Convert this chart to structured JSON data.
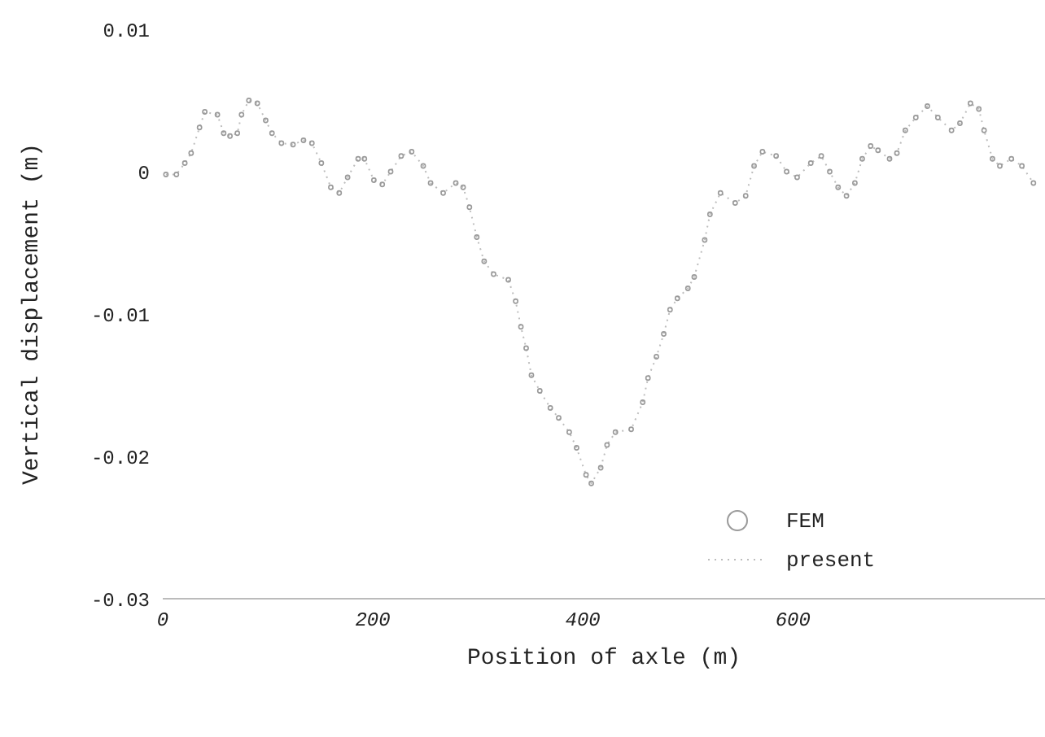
{
  "chart_data": {
    "type": "scatter",
    "xlabel": "Position of axle (m)",
    "ylabel": "Vertical displacement (m)",
    "x": [
      3,
      13,
      21,
      27,
      35,
      40,
      52,
      58,
      64,
      71,
      75,
      82,
      90,
      98,
      104,
      113,
      124,
      134,
      142,
      151,
      160,
      168,
      176,
      186,
      192,
      201,
      209,
      217,
      227,
      237,
      248,
      255,
      267,
      279,
      286,
      292,
      299,
      306,
      315,
      329,
      336,
      341,
      346,
      351,
      359,
      369,
      377,
      387,
      394,
      403,
      408,
      417,
      423,
      431,
      446,
      457,
      462,
      470,
      477,
      483,
      490,
      500,
      506,
      516,
      521,
      531,
      545,
      555,
      563,
      571,
      584,
      594,
      604,
      617,
      627,
      635,
      643,
      651,
      659,
      666,
      674,
      681,
      692,
      699,
      707,
      717,
      728,
      738,
      751,
      759,
      769,
      777,
      782,
      790,
      797,
      808,
      818,
      829
    ],
    "series": [
      {
        "name": "FEM",
        "marker": "circle",
        "color": "#9a9a9a",
        "values": [
          -0.0002,
          -0.0002,
          0.0006,
          0.0013,
          0.0031,
          0.0042,
          0.004,
          0.0027,
          0.0025,
          0.0027,
          0.004,
          0.005,
          0.0048,
          0.0036,
          0.0027,
          0.002,
          0.0019,
          0.0022,
          0.002,
          0.0006,
          -0.0011,
          -0.0015,
          -0.0004,
          0.0009,
          0.0009,
          -0.0006,
          -0.0009,
          0,
          0.0011,
          0.0014,
          0.0004,
          -0.0008,
          -0.0015,
          -0.0008,
          -0.0011,
          -0.0025,
          -0.0046,
          -0.0063,
          -0.0072,
          -0.0076,
          -0.0091,
          -0.0109,
          -0.0124,
          -0.0143,
          -0.0154,
          -0.0166,
          -0.0173,
          -0.0183,
          -0.0194,
          -0.0213,
          -0.0219,
          -0.0208,
          -0.0192,
          -0.0183,
          -0.0181,
          -0.0162,
          -0.0145,
          -0.013,
          -0.0114,
          -0.0097,
          -0.0089,
          -0.0082,
          -0.0074,
          -0.0048,
          -0.003,
          -0.0015,
          -0.0022,
          -0.0017,
          0.0004,
          0.0014,
          0.0011,
          0,
          -0.0004,
          0.0006,
          0.0011,
          0,
          -0.0011,
          -0.0017,
          -0.0008,
          0.0009,
          0.0018,
          0.0015,
          0.0009,
          0.0013,
          0.0029,
          0.0038,
          0.0046,
          0.0038,
          0.0029,
          0.0034,
          0.0048,
          0.0044,
          0.0029,
          0.0009,
          0.0004,
          0.0009,
          0.0004,
          -0.0008
        ]
      },
      {
        "name": "present",
        "type": "line",
        "line_style": "dotted",
        "color": "#bdbdbd",
        "values": [
          -0.0002,
          -0.0002,
          0.0006,
          0.0013,
          0.0031,
          0.0042,
          0.004,
          0.0027,
          0.0025,
          0.0027,
          0.004,
          0.005,
          0.0048,
          0.0036,
          0.0027,
          0.002,
          0.0019,
          0.0022,
          0.002,
          0.0006,
          -0.0011,
          -0.0015,
          -0.0004,
          0.0009,
          0.0009,
          -0.0006,
          -0.0009,
          0,
          0.0011,
          0.0014,
          0.0004,
          -0.0008,
          -0.0015,
          -0.0008,
          -0.0011,
          -0.0025,
          -0.0046,
          -0.0063,
          -0.0072,
          -0.0076,
          -0.0091,
          -0.0109,
          -0.0124,
          -0.0143,
          -0.0154,
          -0.0166,
          -0.0173,
          -0.0183,
          -0.0194,
          -0.0213,
          -0.0219,
          -0.0208,
          -0.0192,
          -0.0183,
          -0.0181,
          -0.0162,
          -0.0145,
          -0.013,
          -0.0114,
          -0.0097,
          -0.0089,
          -0.0082,
          -0.0074,
          -0.0048,
          -0.003,
          -0.0015,
          -0.0022,
          -0.0017,
          0.0004,
          0.0014,
          0.0011,
          0,
          -0.0004,
          0.0006,
          0.0011,
          0,
          -0.0011,
          -0.0017,
          -0.0008,
          0.0009,
          0.0018,
          0.0015,
          0.0009,
          0.0013,
          0.0029,
          0.0038,
          0.0046,
          0.0038,
          0.0029,
          0.0034,
          0.0048,
          0.0044,
          0.0029,
          0.0009,
          0.0004,
          0.0009,
          0.0004,
          -0.0008
        ]
      }
    ],
    "xlim": [
      0,
      840
    ],
    "xticks": [
      0,
      200,
      400,
      600
    ],
    "ylim": [
      -0.03,
      0.01
    ],
    "yticks": [
      -0.03,
      -0.02,
      -0.01,
      0,
      0.01
    ],
    "grid": false,
    "legend": "bottom right"
  }
}
